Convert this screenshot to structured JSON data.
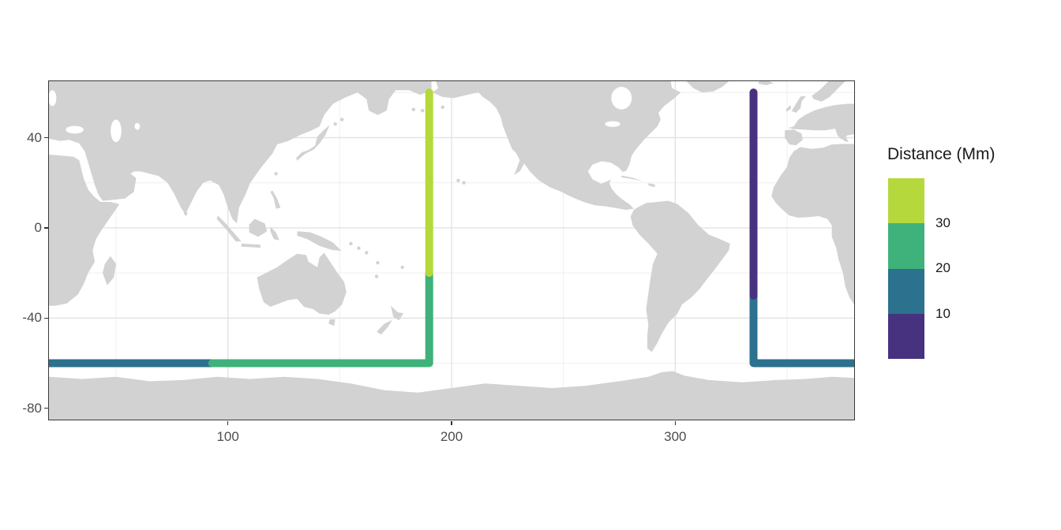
{
  "figure": {
    "background": "#ffffff",
    "panel_border_color": "#3a3a3a",
    "land_color": "#d2d2d2",
    "ocean_color": "#ffffff",
    "gridline_major_color": "#e3e3e3",
    "gridline_minor_color": "#f0f0f0",
    "axis_text_color": "#4d4d4d"
  },
  "chart_data": {
    "type": "line",
    "subtype": "world-map-route",
    "title": "",
    "xlabel": "",
    "ylabel": "",
    "xlim": [
      20,
      380
    ],
    "ylim": [
      -85,
      65
    ],
    "x_ticks": [
      100,
      200,
      300
    ],
    "x_tick_labels": [
      "100",
      "200",
      "300"
    ],
    "y_ticks": [
      40,
      0,
      -40,
      -80
    ],
    "y_tick_labels": [
      "40",
      "0",
      "-40",
      "-80"
    ],
    "x_minor": [
      50,
      150,
      250,
      350
    ],
    "y_minor": [
      60,
      20,
      -20,
      -60
    ],
    "grid": true,
    "legend": {
      "title": "Distance (Mm)",
      "position": "right",
      "break_labels": [
        "30",
        "20",
        "10"
      ],
      "bins": [
        {
          "range": [
            0,
            10
          ],
          "color": "#46327e"
        },
        {
          "range": [
            10,
            20
          ],
          "color": "#2c718e"
        },
        {
          "range": [
            20,
            30
          ],
          "color": "#3fb17a"
        },
        {
          "range": [
            30,
            40
          ],
          "color": "#b5d93c"
        }
      ]
    },
    "route": {
      "start_lonlat": [
        335,
        60
      ],
      "end_lonlat": [
        190,
        60
      ],
      "wraps_map_edge_at_lon": 380,
      "stroke_width": 10
    },
    "series": [
      {
        "name": "distance-10-20-Mm",
        "bin": "10-20",
        "color": "#2c718e",
        "lonlat": [
          [
            335,
            -30
          ],
          [
            335,
            -60
          ],
          [
            381,
            -60
          ]
        ]
      },
      {
        "name": "distance-10-20-Mm-wrapped",
        "bin": "10-20",
        "color": "#2c718e",
        "lonlat": [
          [
            19,
            -60
          ],
          [
            93,
            -60
          ]
        ]
      },
      {
        "name": "distance-20-30-Mm",
        "bin": "20-30",
        "color": "#3fb17a",
        "lonlat": [
          [
            93,
            -60
          ],
          [
            190,
            -60
          ],
          [
            190,
            -20
          ]
        ]
      },
      {
        "name": "distance-30-40-Mm",
        "bin": "30-40",
        "color": "#b5d93c",
        "lonlat": [
          [
            190,
            -20
          ],
          [
            190,
            60
          ]
        ]
      },
      {
        "name": "distance-0-10-Mm",
        "bin": "0-10",
        "color": "#46327e",
        "lonlat": [
          [
            335,
            60
          ],
          [
            335,
            -30
          ]
        ]
      }
    ]
  }
}
